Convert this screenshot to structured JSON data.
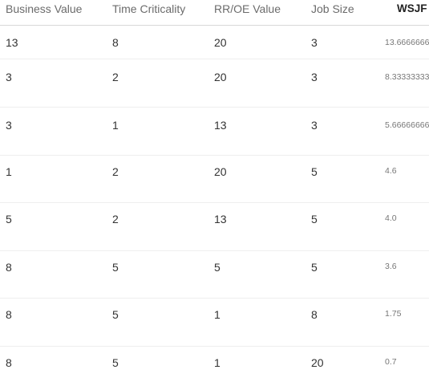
{
  "columns": {
    "business_value": "Business Value",
    "time_criticality": "Time Criticality",
    "rr_oe_value": "RR/OE Value",
    "job_size": "Job Size",
    "wsjf": "WSJF"
  },
  "rows": [
    {
      "business_value": "13",
      "time_criticality": "8",
      "rr_oe_value": "20",
      "job_size": "3",
      "wsjf": "13.6666666"
    },
    {
      "business_value": "3",
      "time_criticality": "2",
      "rr_oe_value": "20",
      "job_size": "3",
      "wsjf": "8.33333333"
    },
    {
      "business_value": "3",
      "time_criticality": "1",
      "rr_oe_value": "13",
      "job_size": "3",
      "wsjf": "5.66666666"
    },
    {
      "business_value": "1",
      "time_criticality": "2",
      "rr_oe_value": "20",
      "job_size": "5",
      "wsjf": "4.6"
    },
    {
      "business_value": "5",
      "time_criticality": "2",
      "rr_oe_value": "13",
      "job_size": "5",
      "wsjf": "4.0"
    },
    {
      "business_value": "8",
      "time_criticality": "5",
      "rr_oe_value": "5",
      "job_size": "5",
      "wsjf": "3.6"
    },
    {
      "business_value": "8",
      "time_criticality": "5",
      "rr_oe_value": "1",
      "job_size": "8",
      "wsjf": "1.75"
    },
    {
      "business_value": "8",
      "time_criticality": "5",
      "rr_oe_value": "1",
      "job_size": "20",
      "wsjf": "0.7"
    }
  ]
}
